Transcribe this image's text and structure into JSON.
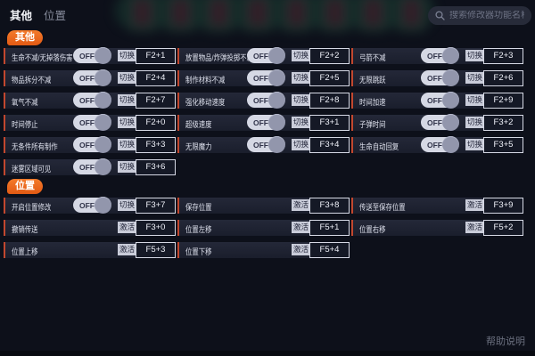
{
  "tabs": [
    {
      "label": "其他",
      "active": true
    },
    {
      "label": "位置",
      "active": false
    }
  ],
  "search": {
    "placeholder": "搜索修改器功能名称"
  },
  "toggle_off_label": "OFF",
  "help_label": "帮助说明",
  "colors": {
    "accent_orange": "#ed6a1f",
    "row_border_red": "#c2472e",
    "row_bg": "#1e2230",
    "hotkey_border": "#d6d9e5"
  },
  "sections": [
    {
      "badge": "其他",
      "columns": [
        {
          "rows": [
            {
              "label": "生命不减/无掉落伤害",
              "toggle": true,
              "mode": "切换",
              "hotkey": "F2+1"
            },
            {
              "label": "物品拆分不减",
              "toggle": true,
              "mode": "切换",
              "hotkey": "F2+4"
            },
            {
              "label": "氧气不减",
              "toggle": true,
              "mode": "切换",
              "hotkey": "F2+7"
            },
            {
              "label": "时间停止",
              "toggle": true,
              "mode": "切换",
              "hotkey": "F2+0"
            },
            {
              "label": "无条件所有制作",
              "toggle": true,
              "mode": "切换",
              "hotkey": "F3+3"
            },
            {
              "label": "迷雾区域可见",
              "toggle": true,
              "mode": "切换",
              "hotkey": "F3+6"
            }
          ]
        },
        {
          "rows": [
            {
              "label": "放置物品/炸弹投掷不减",
              "toggle": true,
              "mode": "切换",
              "hotkey": "F2+2"
            },
            {
              "label": "制作材料不减",
              "toggle": true,
              "mode": "切换",
              "hotkey": "F2+5"
            },
            {
              "label": "强化移动速度",
              "toggle": true,
              "mode": "切换",
              "hotkey": "F2+8"
            },
            {
              "label": "超级速度",
              "toggle": true,
              "mode": "切换",
              "hotkey": "F3+1"
            },
            {
              "label": "无限魔力",
              "toggle": true,
              "mode": "切换",
              "hotkey": "F3+4"
            }
          ]
        },
        {
          "rows": [
            {
              "label": "弓箭不减",
              "toggle": true,
              "mode": "切换",
              "hotkey": "F2+3"
            },
            {
              "label": "无限跳跃",
              "toggle": true,
              "mode": "切换",
              "hotkey": "F2+6"
            },
            {
              "label": "时间加速",
              "toggle": true,
              "mode": "切换",
              "hotkey": "F2+9"
            },
            {
              "label": "子弹时间",
              "toggle": true,
              "mode": "切换",
              "hotkey": "F3+2"
            },
            {
              "label": "生命自动回复",
              "toggle": true,
              "mode": "切换",
              "hotkey": "F3+5"
            }
          ]
        }
      ]
    },
    {
      "badge": "位置",
      "columns": [
        {
          "rows": [
            {
              "label": "开启位置修改",
              "toggle": true,
              "mode": "切换",
              "hotkey": "F3+7"
            },
            {
              "label": "撤销传送",
              "toggle": false,
              "mode": "激活",
              "hotkey": "F3+0"
            },
            {
              "label": "位置上移",
              "toggle": false,
              "mode": "激活",
              "hotkey": "F5+3"
            }
          ]
        },
        {
          "rows": [
            {
              "label": "保存位置",
              "toggle": false,
              "mode": "激活",
              "hotkey": "F3+8"
            },
            {
              "label": "位置左移",
              "toggle": false,
              "mode": "激活",
              "hotkey": "F5+1"
            },
            {
              "label": "位置下移",
              "toggle": false,
              "mode": "激活",
              "hotkey": "F5+4"
            }
          ]
        },
        {
          "rows": [
            {
              "label": "传送至保存位置",
              "toggle": false,
              "mode": "激活",
              "hotkey": "F3+9"
            },
            {
              "label": "位置右移",
              "toggle": false,
              "mode": "激活",
              "hotkey": "F5+2"
            }
          ]
        }
      ]
    }
  ]
}
